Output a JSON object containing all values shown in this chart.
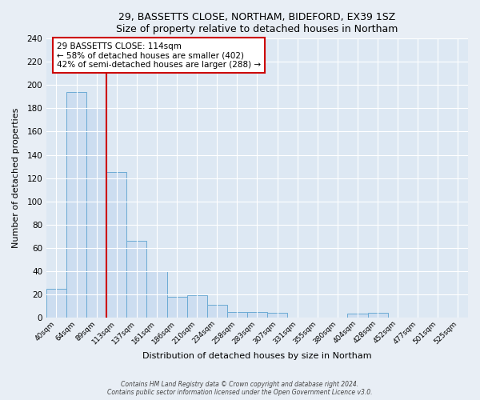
{
  "title": "29, BASSETTS CLOSE, NORTHAM, BIDEFORD, EX39 1SZ",
  "subtitle": "Size of property relative to detached houses in Northam",
  "xlabel": "Distribution of detached houses by size in Northam",
  "ylabel": "Number of detached properties",
  "bin_labels": [
    "40sqm",
    "64sqm",
    "89sqm",
    "113sqm",
    "137sqm",
    "161sqm",
    "186sqm",
    "210sqm",
    "234sqm",
    "258sqm",
    "283sqm",
    "307sqm",
    "331sqm",
    "355sqm",
    "380sqm",
    "404sqm",
    "428sqm",
    "452sqm",
    "477sqm",
    "501sqm",
    "525sqm"
  ],
  "bar_heights": [
    25,
    194,
    180,
    125,
    66,
    40,
    18,
    19,
    11,
    5,
    5,
    4,
    0,
    0,
    0,
    3,
    4,
    0,
    0,
    0,
    0
  ],
  "bar_color": "#ccddf0",
  "bar_edge_color": "#6aaad4",
  "vline_x_index": 3,
  "vline_color": "#cc0000",
  "annotation_title": "29 BASSETTS CLOSE: 114sqm",
  "annotation_line1": "← 58% of detached houses are smaller (402)",
  "annotation_line2": "42% of semi-detached houses are larger (288) →",
  "annotation_box_color": "#ffffff",
  "annotation_box_edge": "#cc0000",
  "ylim": [
    0,
    240
  ],
  "yticks": [
    0,
    20,
    40,
    60,
    80,
    100,
    120,
    140,
    160,
    180,
    200,
    220,
    240
  ],
  "footer1": "Contains HM Land Registry data © Crown copyright and database right 2024.",
  "footer2": "Contains public sector information licensed under the Open Government Licence v3.0.",
  "bg_color": "#e8eef5",
  "plot_bg_color": "#dde8f3"
}
